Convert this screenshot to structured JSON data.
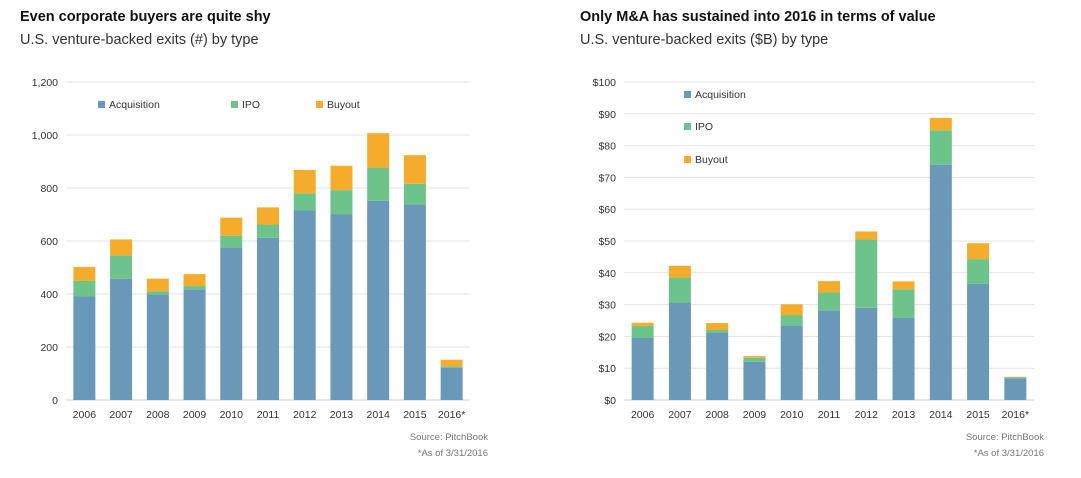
{
  "chart_data": [
    {
      "type": "bar",
      "stacked": true,
      "title": "Even corporate buyers are quite shy",
      "subtitle": "U.S. venture-backed exits (#) by type",
      "categories": [
        "2006",
        "2007",
        "2008",
        "2009",
        "2010",
        "2011",
        "2012",
        "2013",
        "2014",
        "2015",
        "2016*"
      ],
      "series": [
        {
          "name": "Acquisition",
          "values": [
            392,
            458,
            398,
            418,
            575,
            612,
            715,
            700,
            752,
            738,
            122
          ]
        },
        {
          "name": "IPO",
          "values": [
            58,
            88,
            12,
            12,
            45,
            50,
            65,
            92,
            125,
            78,
            5
          ]
        },
        {
          "name": "Buyout",
          "values": [
            52,
            60,
            48,
            45,
            68,
            65,
            88,
            92,
            130,
            108,
            25
          ]
        }
      ],
      "ylim": [
        0,
        1200
      ],
      "yticks": [
        0,
        200,
        400,
        600,
        800,
        1000,
        1200
      ],
      "ytick_labels": [
        "0",
        "200",
        "400",
        "600",
        "800",
        "1,000",
        "1,200"
      ],
      "legend_position": "top",
      "grid": true,
      "source": "Source: PitchBook",
      "footnote": "*As of 3/31/2016"
    },
    {
      "type": "bar",
      "stacked": true,
      "title": "Only M&A has sustained into 2016 in terms of value",
      "subtitle": "U.S. venture-backed exits ($B) by type",
      "categories": [
        "2006",
        "2007",
        "2008",
        "2009",
        "2010",
        "2011",
        "2012",
        "2013",
        "2014",
        "2015",
        "2016*"
      ],
      "series": [
        {
          "name": "Acquisition",
          "values": [
            19.5,
            30.5,
            21.2,
            12.0,
            23.5,
            28.2,
            29.0,
            25.8,
            74.0,
            36.5,
            6.8
          ]
        },
        {
          "name": "IPO",
          "values": [
            3.8,
            8.0,
            0.8,
            1.3,
            3.2,
            5.6,
            21.5,
            9.0,
            10.8,
            7.8,
            0.3
          ]
        },
        {
          "name": "Buyout",
          "values": [
            1.0,
            3.7,
            2.2,
            0.5,
            3.4,
            3.6,
            2.5,
            2.5,
            3.9,
            5.0,
            0.2
          ]
        }
      ],
      "ylim": [
        0,
        100
      ],
      "yticks": [
        0,
        10,
        20,
        30,
        40,
        50,
        60,
        70,
        80,
        90,
        100
      ],
      "ytick_labels": [
        "$0",
        "$10",
        "$20",
        "$30",
        "$40",
        "$50",
        "$60",
        "$70",
        "$80",
        "$90",
        "$100"
      ],
      "legend_position": "top-left",
      "grid": true,
      "source": "Source: PitchBook",
      "footnote": "*As of 3/31/2016"
    }
  ],
  "colors": {
    "Acquisition": "#6a98b8",
    "IPO": "#6cc48a",
    "Buyout": "#f5ac2d",
    "grid": "#e3e3e3",
    "axis": "#cfcfcf"
  }
}
